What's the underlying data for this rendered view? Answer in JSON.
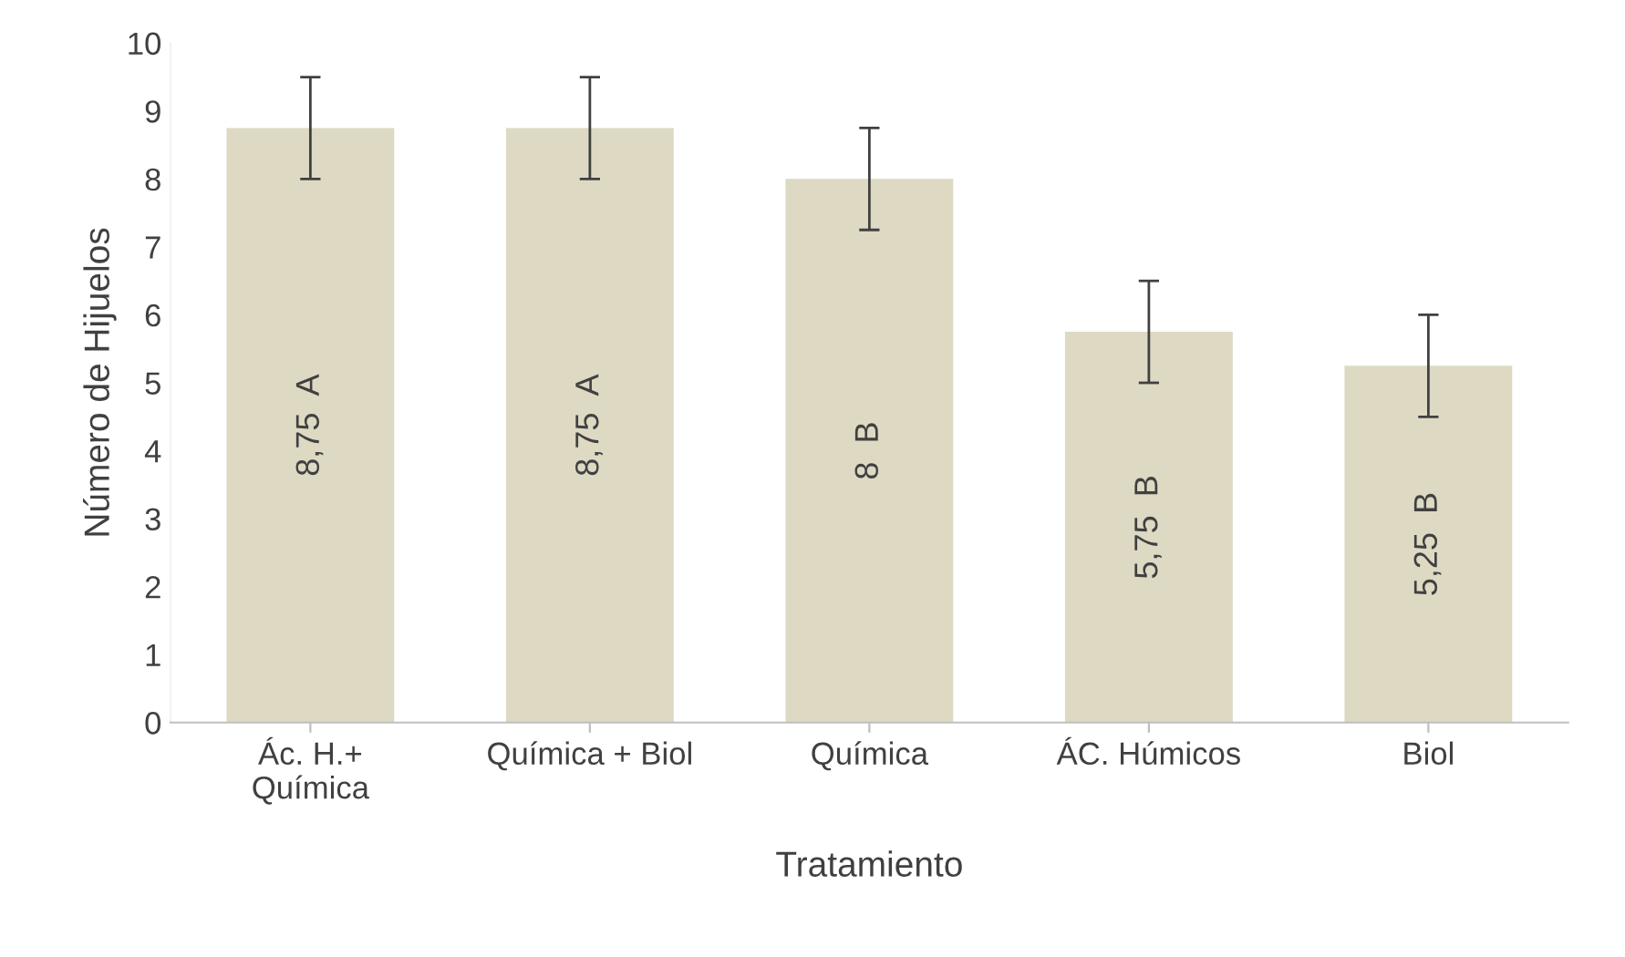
{
  "chart_data": {
    "type": "bar",
    "xlabel": "Tratamiento",
    "ylabel": "Número de Hijuelos",
    "categories": [
      "Ác. H.+\nQuímica",
      "Química + Biol",
      "Química",
      "ÁC. Húmicos",
      "Biol"
    ],
    "values": [
      8.75,
      8.75,
      8,
      5.75,
      5.25
    ],
    "errors": [
      0.75,
      0.75,
      0.75,
      0.75,
      0.75
    ],
    "value_labels": [
      "8,75  A",
      "8,75  A",
      "8  B",
      "5,75  B",
      "5,25  B"
    ],
    "color": "#ddd9c3",
    "ylim": [
      0,
      10
    ],
    "yticks": [
      0,
      1,
      2,
      3,
      4,
      5,
      6,
      7,
      8,
      9,
      10
    ],
    "grid": false
  }
}
